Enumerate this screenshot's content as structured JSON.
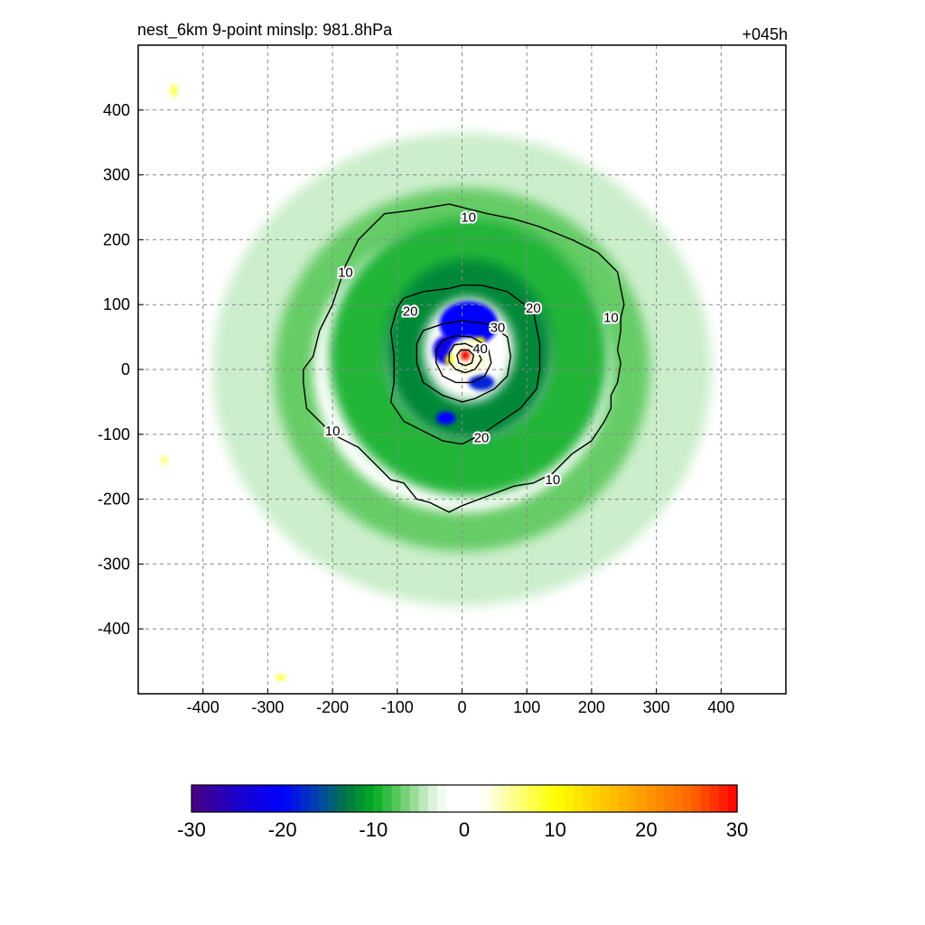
{
  "chart_data": {
    "type": "heatmap",
    "title_left": "nest_6km  9-point minslp: 981.8hPa",
    "title_right": "+045h",
    "xlabel": "",
    "ylabel": "",
    "xlim": [
      -500,
      500
    ],
    "ylim": [
      -500,
      500
    ],
    "x_ticks": [
      -400,
      -300,
      -200,
      -100,
      0,
      100,
      200,
      300,
      400
    ],
    "y_ticks": [
      400,
      300,
      200,
      100,
      0,
      -100,
      -200,
      -300,
      -400
    ],
    "grid": true,
    "colorbar": {
      "range": [
        -30,
        30
      ],
      "levels": 60,
      "tick_values": [
        -30,
        -20,
        -10,
        0,
        10,
        20,
        30
      ],
      "tick_labels": [
        "-30",
        "-20",
        "-10",
        "0",
        "10",
        "20",
        "30"
      ],
      "colors": {
        "-30": "#4b0082",
        "-25": "#1a00cc",
        "-20": "#0000ff",
        "-16": "#0044aa",
        "-13": "#007744",
        "-10": "#00aa22",
        "-7": "#66cc66",
        "-4": "#cceecc",
        "-2": "#ffffff",
        "2": "#ffffff",
        "5": "#ffff99",
        "10": "#ffff00",
        "15": "#ffcc00",
        "20": "#ff9900",
        "25": "#ff6600",
        "30": "#ff0000"
      }
    },
    "fill_features": [
      {
        "kind": "ring",
        "cx": 0,
        "cy": 0,
        "rx": 330,
        "ry": 310,
        "width": 110,
        "value": -4
      },
      {
        "kind": "ring",
        "cx": 0,
        "cy": 0,
        "rx": 260,
        "ry": 250,
        "width": 60,
        "value": -7
      },
      {
        "kind": "ring",
        "cx": 10,
        "cy": 20,
        "rx": 170,
        "ry": 170,
        "width": 90,
        "value": -9
      },
      {
        "kind": "ring",
        "cx": 10,
        "cy": 30,
        "rx": 100,
        "ry": 110,
        "width": 60,
        "value": -12
      },
      {
        "kind": "blob",
        "cx": 10,
        "cy": 70,
        "rx": 45,
        "ry": 35,
        "value": -20
      },
      {
        "kind": "blob",
        "cx": -25,
        "cy": 30,
        "rx": 20,
        "ry": 22,
        "value": -22
      },
      {
        "kind": "blob",
        "cx": 30,
        "cy": -20,
        "rx": 20,
        "ry": 12,
        "value": -18
      },
      {
        "kind": "blob",
        "cx": -25,
        "cy": -75,
        "rx": 15,
        "ry": 10,
        "value": -20
      },
      {
        "kind": "blob",
        "cx": 10,
        "cy": 20,
        "rx": 30,
        "ry": 30,
        "value": 3
      },
      {
        "kind": "blob",
        "cx": -20,
        "cy": 15,
        "rx": 6,
        "ry": 8,
        "value": 10
      },
      {
        "kind": "blob",
        "cx": 28,
        "cy": 45,
        "rx": 8,
        "ry": 5,
        "value": 10
      },
      {
        "kind": "blob",
        "cx": 5,
        "cy": 22,
        "rx": 7,
        "ry": 8,
        "value": 30
      },
      {
        "kind": "blob",
        "cx": -445,
        "cy": 430,
        "rx": 6,
        "ry": 10,
        "value": 7
      },
      {
        "kind": "blob",
        "cx": -460,
        "cy": -140,
        "rx": 5,
        "ry": 8,
        "value": 6
      },
      {
        "kind": "blob",
        "cx": -280,
        "cy": -475,
        "rx": 8,
        "ry": 5,
        "value": 8
      }
    ],
    "contours": [
      {
        "label": "10",
        "points": [
          [
            -120,
            240
          ],
          [
            -80,
            245
          ],
          [
            -50,
            250
          ],
          [
            -20,
            255
          ],
          [
            0,
            250
          ],
          [
            40,
            240
          ],
          [
            80,
            232
          ],
          [
            120,
            220
          ],
          [
            170,
            200
          ],
          [
            210,
            180
          ],
          [
            240,
            150
          ],
          [
            250,
            100
          ],
          [
            245,
            80
          ],
          [
            245,
            60
          ],
          [
            240,
            30
          ],
          [
            245,
            10
          ],
          [
            240,
            -20
          ],
          [
            230,
            -40
          ],
          [
            230,
            -60
          ],
          [
            220,
            -80
          ],
          [
            200,
            -110
          ],
          [
            170,
            -130
          ],
          [
            140,
            -160
          ],
          [
            110,
            -175
          ],
          [
            80,
            -180
          ],
          [
            40,
            -195
          ],
          [
            0,
            -210
          ],
          [
            -20,
            -220
          ],
          [
            -50,
            -205
          ],
          [
            -70,
            -200
          ],
          [
            -90,
            -175
          ],
          [
            -110,
            -170
          ],
          [
            -120,
            -160
          ],
          [
            -160,
            -120
          ],
          [
            -200,
            -100
          ],
          [
            -220,
            -80
          ],
          [
            -240,
            -60
          ],
          [
            -245,
            -20
          ],
          [
            -245,
            0
          ],
          [
            -230,
            20
          ],
          [
            -220,
            60
          ],
          [
            -200,
            100
          ],
          [
            -180,
            160
          ],
          [
            -160,
            200
          ],
          [
            -140,
            220
          ],
          [
            -120,
            240
          ]
        ],
        "labels_at": [
          [
            10,
            235
          ],
          [
            -180,
            150
          ],
          [
            230,
            80
          ],
          [
            -200,
            -95
          ],
          [
            140,
            -170
          ]
        ]
      },
      {
        "label": "20",
        "points": [
          [
            -100,
            95
          ],
          [
            -90,
            110
          ],
          [
            -60,
            120
          ],
          [
            -20,
            125
          ],
          [
            0,
            130
          ],
          [
            30,
            130
          ],
          [
            70,
            120
          ],
          [
            110,
            90
          ],
          [
            120,
            40
          ],
          [
            120,
            0
          ],
          [
            115,
            -30
          ],
          [
            90,
            -60
          ],
          [
            60,
            -80
          ],
          [
            30,
            -100
          ],
          [
            0,
            -115
          ],
          [
            -30,
            -110
          ],
          [
            -60,
            -95
          ],
          [
            -90,
            -80
          ],
          [
            -110,
            -50
          ],
          [
            -105,
            -20
          ],
          [
            -105,
            20
          ],
          [
            -110,
            60
          ],
          [
            -100,
            95
          ]
        ],
        "labels_at": [
          [
            -80,
            90
          ],
          [
            110,
            95
          ],
          [
            30,
            -105
          ]
        ]
      },
      {
        "label": "30",
        "points": [
          [
            -70,
            40
          ],
          [
            -60,
            60
          ],
          [
            -30,
            70
          ],
          [
            0,
            75
          ],
          [
            40,
            70
          ],
          [
            70,
            50
          ],
          [
            75,
            20
          ],
          [
            70,
            -10
          ],
          [
            50,
            -30
          ],
          [
            20,
            -45
          ],
          [
            0,
            -50
          ],
          [
            -30,
            -40
          ],
          [
            -60,
            -20
          ],
          [
            -70,
            10
          ],
          [
            -70,
            40
          ]
        ],
        "labels_at": [
          [
            55,
            65
          ]
        ]
      },
      {
        "label": "",
        "points": [
          [
            -40,
            30
          ],
          [
            -30,
            45
          ],
          [
            -10,
            52
          ],
          [
            15,
            50
          ],
          [
            40,
            35
          ],
          [
            45,
            10
          ],
          [
            35,
            -10
          ],
          [
            15,
            -20
          ],
          [
            -10,
            -20
          ],
          [
            -30,
            -10
          ],
          [
            -40,
            10
          ],
          [
            -40,
            30
          ]
        ],
        "labels_at": []
      },
      {
        "label": "40",
        "points": [
          [
            -20,
            25
          ],
          [
            -12,
            38
          ],
          [
            5,
            40
          ],
          [
            22,
            32
          ],
          [
            30,
            15
          ],
          [
            20,
            0
          ],
          [
            5,
            -5
          ],
          [
            -10,
            0
          ],
          [
            -20,
            12
          ],
          [
            -20,
            25
          ]
        ],
        "labels_at": [
          [
            28,
            32
          ]
        ]
      },
      {
        "label": "",
        "points": [
          [
            -8,
            22
          ],
          [
            -2,
            30
          ],
          [
            10,
            30
          ],
          [
            18,
            22
          ],
          [
            15,
            10
          ],
          [
            5,
            6
          ],
          [
            -5,
            10
          ],
          [
            -8,
            22
          ]
        ],
        "labels_at": []
      }
    ]
  }
}
